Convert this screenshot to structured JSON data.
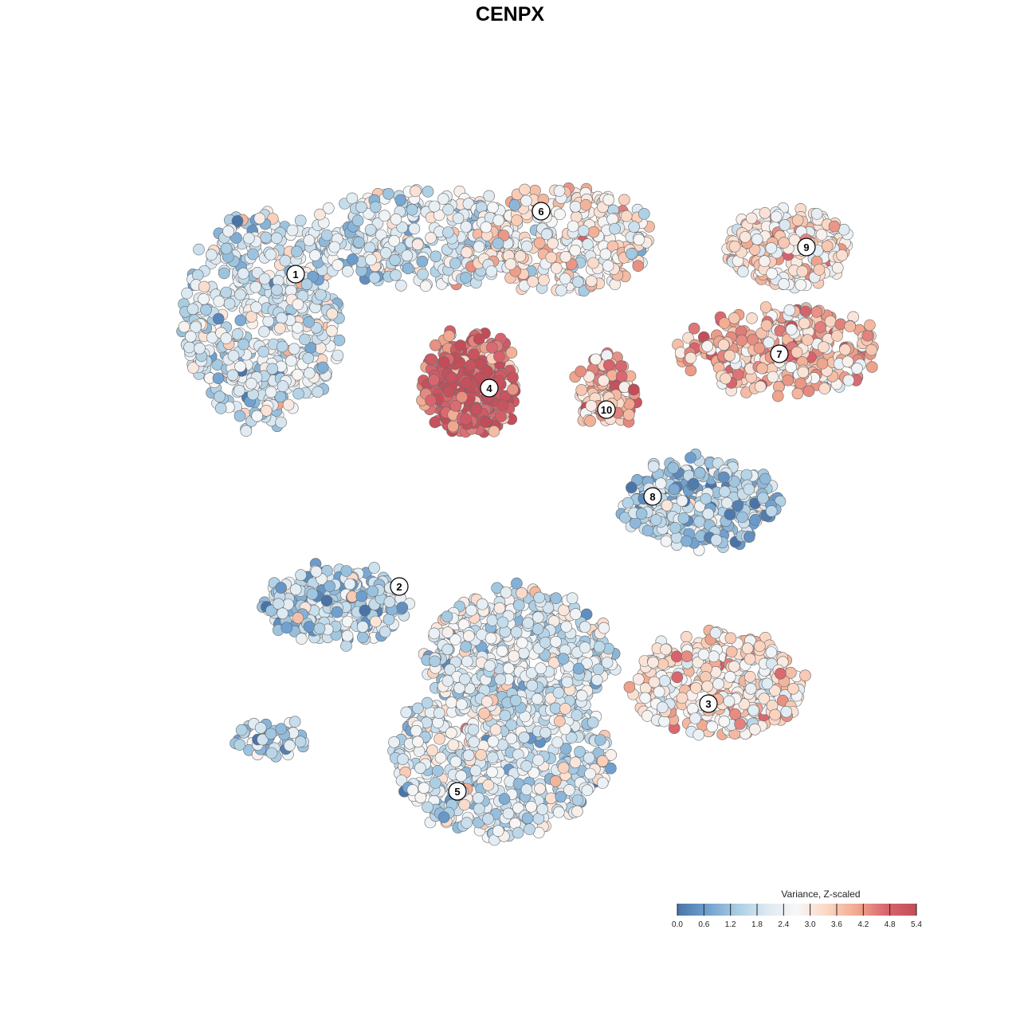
{
  "chart_data": {
    "type": "scatter",
    "title": "CENPX",
    "xlabel": "",
    "ylabel": "",
    "grid": false,
    "legend": {
      "title": "Variance, Z-scaled",
      "placement": "bottom-right",
      "ticks": [
        "0.0",
        "0.6",
        "1.2",
        "1.8",
        "2.4",
        "3.0",
        "3.6",
        "4.2",
        "4.8",
        "5.4"
      ],
      "range": [
        0,
        5.4
      ],
      "colors": [
        "#4a74a8",
        "#6fa0cf",
        "#a9cde3",
        "#dde9f2",
        "#f7f7f7",
        "#fbd7c4",
        "#f1a98f",
        "#d8646e",
        "#c34c58"
      ]
    },
    "clusters": [
      {
        "label": "1",
        "mean_value": 2.0
      },
      {
        "label": "2",
        "mean_value": 1.5
      },
      {
        "label": "3",
        "mean_value": 3.1
      },
      {
        "label": "4",
        "mean_value": 4.6
      },
      {
        "label": "5",
        "mean_value": 2.1
      },
      {
        "label": "6",
        "mean_value": 2.9
      },
      {
        "label": "7",
        "mean_value": 3.7
      },
      {
        "label": "8",
        "mean_value": 1.4
      },
      {
        "label": "9",
        "mean_value": 3.2
      },
      {
        "label": "10",
        "mean_value": 3.9
      }
    ]
  }
}
